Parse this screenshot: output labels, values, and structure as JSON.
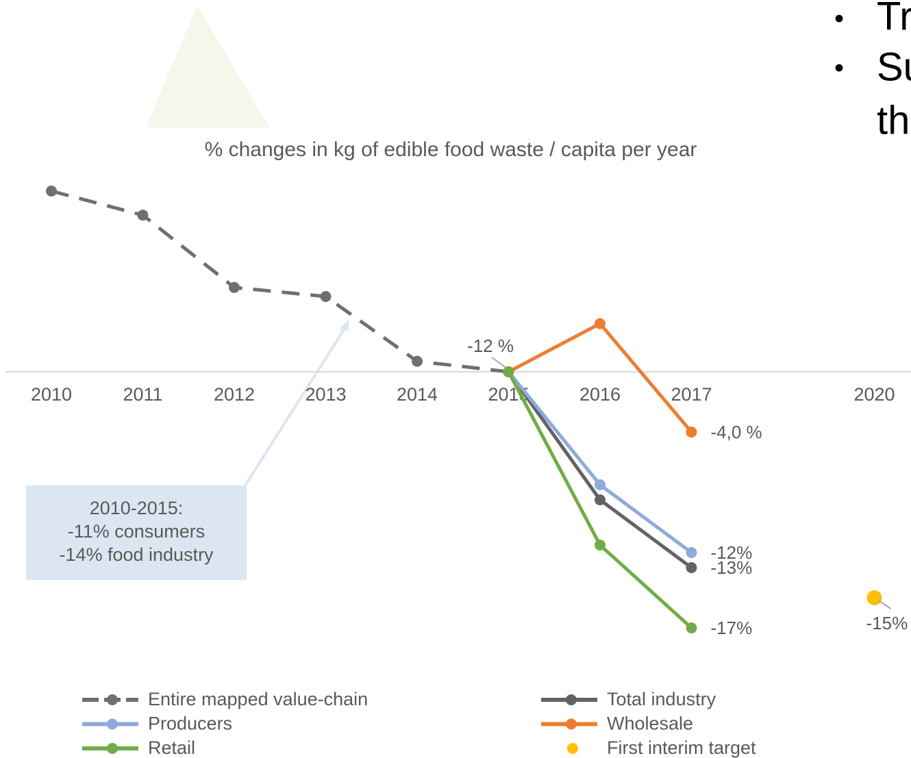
{
  "slide_bullets": [
    "Tr",
    "Su",
    "th"
  ],
  "chart_data": {
    "type": "line",
    "title": "% changes in kg of edible food waste / capita per year",
    "categories": [
      "2010",
      "2011",
      "2012",
      "2013",
      "2014",
      "2015",
      "2016",
      "2017",
      null,
      "2020"
    ],
    "ylim": [
      -20,
      13
    ],
    "point_note": "-12 %",
    "callout": [
      "2010-2015:",
      "-11% consumers",
      "-14% food industry"
    ],
    "series": [
      {
        "name": "Entire mapped value-chain",
        "color": "#6f6f6f",
        "dash": true,
        "values": [
          12,
          10.4,
          5.6,
          5,
          0.7,
          0,
          null,
          null,
          null,
          null
        ]
      },
      {
        "name": "Total industry",
        "color": "#636363",
        "values": [
          null,
          null,
          null,
          null,
          null,
          0,
          -8.5,
          -13,
          null,
          null
        ],
        "value_labels": [
          null,
          null,
          null,
          null,
          null,
          null,
          null,
          "-13%",
          null,
          null
        ]
      },
      {
        "name": "Producers",
        "color": "#8faadc",
        "values": [
          null,
          null,
          null,
          null,
          null,
          0,
          -7.5,
          -12,
          null,
          null
        ],
        "value_labels": [
          null,
          null,
          null,
          null,
          null,
          null,
          null,
          "-12%",
          null,
          null
        ]
      },
      {
        "name": "Wholesale",
        "color": "#ed7d31",
        "values": [
          null,
          null,
          null,
          null,
          null,
          0,
          3.2,
          -4,
          null,
          null
        ],
        "value_labels": [
          null,
          null,
          null,
          null,
          null,
          null,
          null,
          "-4,0 %",
          null,
          null
        ]
      },
      {
        "name": "Retail",
        "color": "#70ad47",
        "values": [
          null,
          null,
          null,
          null,
          null,
          0,
          -11.5,
          -17,
          null,
          null
        ],
        "value_labels": [
          null,
          null,
          null,
          null,
          null,
          null,
          null,
          "-17%",
          null,
          null
        ]
      },
      {
        "name": "First interim target",
        "color": "#ffc000",
        "mode": "marker",
        "values": [
          null,
          null,
          null,
          null,
          null,
          null,
          null,
          null,
          null,
          -15
        ],
        "value_labels": [
          null,
          null,
          null,
          null,
          null,
          null,
          null,
          null,
          null,
          "-15%"
        ]
      }
    ]
  }
}
